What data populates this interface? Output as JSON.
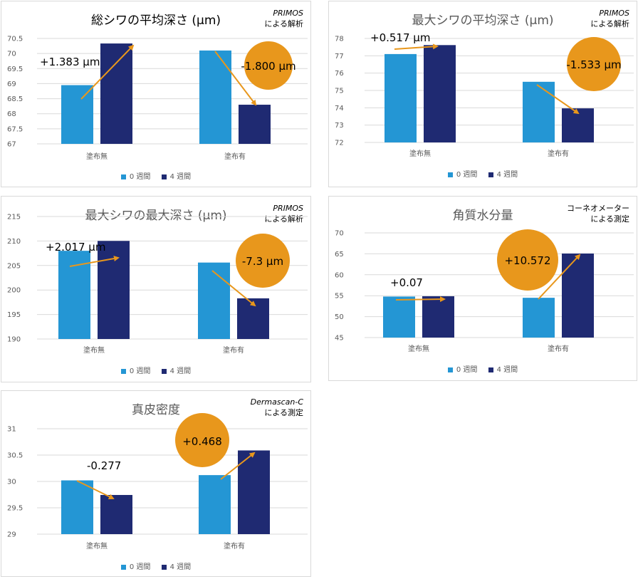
{
  "colors": {
    "week0": "#2496d4",
    "week4": "#1f2a72",
    "accent": "#e8971c",
    "grid": "#d9d9d9"
  },
  "legend": {
    "week0": "0 週間",
    "week4": "4 週間"
  },
  "chart_data": [
    {
      "type": "bar",
      "title": "総シワの平均深さ (µm)",
      "note": {
        "source": "PRIMOS",
        "method": "による解析"
      },
      "categories": [
        "塗布無",
        "塗布有"
      ],
      "series": [
        {
          "name": "0 週間",
          "values": [
            68.95,
            70.1
          ]
        },
        {
          "name": "4 週間",
          "values": [
            70.333,
            68.3
          ]
        }
      ],
      "ylim": [
        67,
        70.5
      ],
      "yticks": [
        "67",
        "67.5",
        "68",
        "68.5",
        "69",
        "69.5",
        "70",
        "70.5"
      ],
      "grid": true,
      "legend_position": "bottom",
      "annotations": [
        "+1.383 µm",
        "-1.800 µm"
      ]
    },
    {
      "type": "bar",
      "title": "最大シワの平均深さ (µm)",
      "note": {
        "source": "PRIMOS",
        "method": "による解析"
      },
      "categories": [
        "塗布無",
        "塗布有"
      ],
      "series": [
        {
          "name": "0 週間",
          "values": [
            77.1,
            75.5
          ]
        },
        {
          "name": "4 週間",
          "values": [
            77.617,
            73.967
          ]
        }
      ],
      "ylim": [
        72,
        78
      ],
      "yticks": [
        "72",
        "73",
        "74",
        "75",
        "76",
        "77",
        "78"
      ],
      "grid": true,
      "legend_position": "bottom",
      "annotations": [
        "+0.517 µm",
        "-1.533 µm"
      ]
    },
    {
      "type": "bar",
      "title": "最大シワの最大深さ (µm)",
      "note": {
        "source": "PRIMOS",
        "method": "による解析"
      },
      "categories": [
        "塗布無",
        "塗布有"
      ],
      "series": [
        {
          "name": "0 週間",
          "values": [
            208,
            205.6
          ]
        },
        {
          "name": "4 週間",
          "values": [
            210.017,
            198.3
          ]
        }
      ],
      "ylim": [
        190,
        215
      ],
      "yticks": [
        "190",
        "195",
        "200",
        "205",
        "210",
        "215"
      ],
      "grid": true,
      "legend_position": "bottom",
      "annotations": [
        "+2.017 µm",
        "-7.3 µm"
      ]
    },
    {
      "type": "bar",
      "title": "角質水分量",
      "note": {
        "source": "コーネオメーター",
        "method": "による測定"
      },
      "categories": [
        "塗布無",
        "塗布有"
      ],
      "series": [
        {
          "name": "0 週間",
          "values": [
            54.8,
            54.5
          ]
        },
        {
          "name": "4 週間",
          "values": [
            54.87,
            65.072
          ]
        }
      ],
      "ylim": [
        45,
        70
      ],
      "yticks": [
        "45",
        "50",
        "55",
        "60",
        "65",
        "70"
      ],
      "grid": true,
      "legend_position": "bottom",
      "annotations": [
        "+0.07",
        "+10.572"
      ]
    },
    {
      "type": "bar",
      "title": "真皮密度",
      "note": {
        "source": "Dermascan-C",
        "method": "による測定"
      },
      "categories": [
        "塗布無",
        "塗布有"
      ],
      "series": [
        {
          "name": "0 週間",
          "values": [
            30.02,
            30.12
          ]
        },
        {
          "name": "4 週間",
          "values": [
            29.743,
            30.588
          ]
        }
      ],
      "ylim": [
        29,
        31
      ],
      "yticks": [
        "29",
        "29.5",
        "30",
        "30.5",
        "31"
      ],
      "grid": true,
      "legend_position": "bottom",
      "annotations": [
        "-0.277",
        "+0.468"
      ]
    }
  ]
}
